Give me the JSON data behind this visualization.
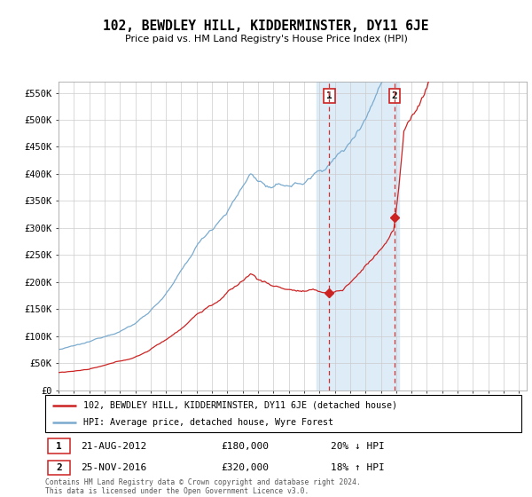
{
  "title": "102, BEWDLEY HILL, KIDDERMINSTER, DY11 6JE",
  "subtitle": "Price paid vs. HM Land Registry's House Price Index (HPI)",
  "ylabel_ticks": [
    "£0",
    "£50K",
    "£100K",
    "£150K",
    "£200K",
    "£250K",
    "£300K",
    "£350K",
    "£400K",
    "£450K",
    "£500K",
    "£550K"
  ],
  "ytick_values": [
    0,
    50000,
    100000,
    150000,
    200000,
    250000,
    300000,
    350000,
    400000,
    450000,
    500000,
    550000
  ],
  "ylim": [
    0,
    570000
  ],
  "xlim_start": 1995.0,
  "xlim_end": 2025.5,
  "hpi_color": "#7aabcf",
  "price_color": "#cc2222",
  "marker1_x": 2012.64,
  "marker1_y": 180000,
  "marker2_x": 2016.9,
  "marker2_y": 320000,
  "shade_x1": 2011.8,
  "shade_x2": 2017.2,
  "legend_line1": "102, BEWDLEY HILL, KIDDERMINSTER, DY11 6JE (detached house)",
  "legend_line2": "HPI: Average price, detached house, Wyre Forest",
  "table_row1_num": "1",
  "table_row1_date": "21-AUG-2012",
  "table_row1_price": "£180,000",
  "table_row1_hpi": "20% ↓ HPI",
  "table_row2_num": "2",
  "table_row2_date": "25-NOV-2016",
  "table_row2_price": "£320,000",
  "table_row2_hpi": "18% ↑ HPI",
  "footnote": "Contains HM Land Registry data © Crown copyright and database right 2024.\nThis data is licensed under the Open Government Licence v3.0.",
  "background_color": "#ffffff",
  "plot_bg_color": "#ffffff",
  "grid_color": "#cccccc"
}
